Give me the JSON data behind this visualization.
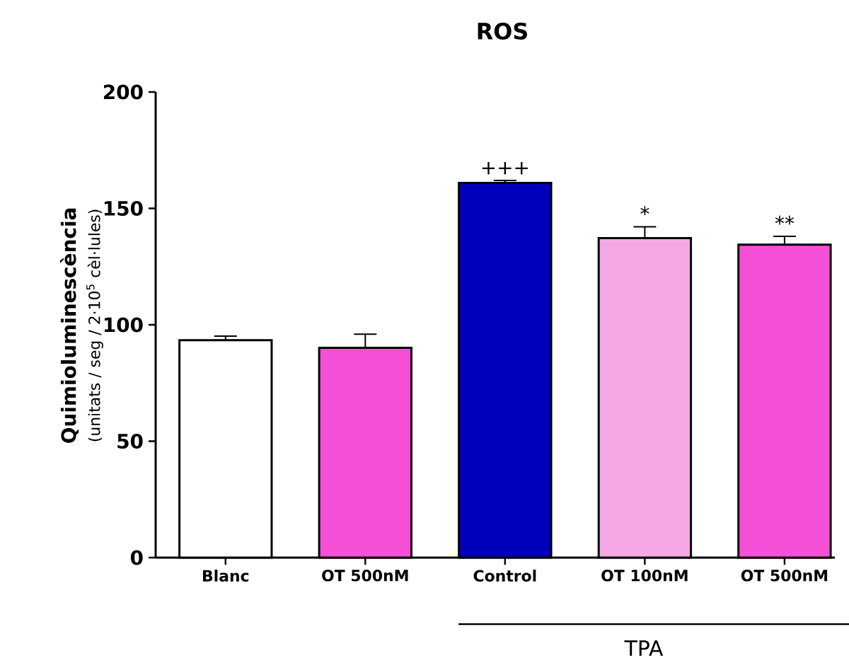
{
  "chart_data": {
    "type": "bar",
    "title": "ROS",
    "ylabel": "Quimioluminescència",
    "categories": [
      "Blanc",
      "OT 500nM",
      "Control",
      "OT 100nM",
      "OT 500nM"
    ],
    "values": [
      93.4,
      90.1,
      160.9,
      137.2,
      134.4
    ],
    "errors": [
      [
        93.4,
        95.1
      ],
      [
        90.1,
        96
      ],
      [
        160.9,
        162
      ],
      [
        137.2,
        142.1
      ],
      [
        134.4,
        138
      ]
    ],
    "colors": [
      "#ffffff",
      "#f54fd8",
      "#0000bb",
      "#f5a8e6",
      "#f54fd8"
    ],
    "ylim": [
      0,
      200
    ],
    "yticks": [
      0,
      50,
      100,
      150,
      200
    ],
    "grid": false,
    "annotations": [
      "(unitats / seg / 2·10$^{5}$ cèl·lules)",
      "TPA",
      "+++",
      "*",
      "**"
    ]
  }
}
